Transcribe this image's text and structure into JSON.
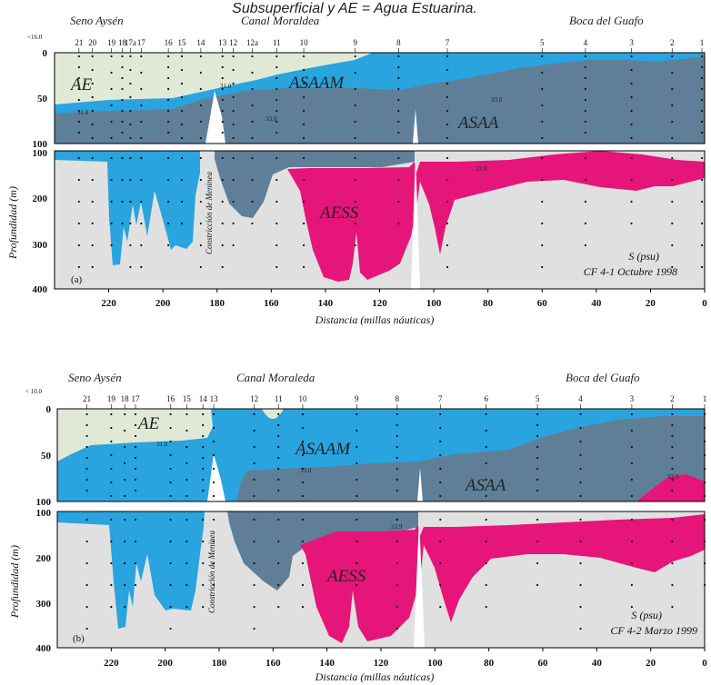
{
  "caption": "Subsuperficial y AE = Agua Estuarina.",
  "colors": {
    "AE": "#dfe9d6",
    "ASAAM": "#29a4df",
    "ASAA": "#5f7f98",
    "AESS": "#e6157a",
    "deep": "#e0e0e0",
    "sill": "#ffffff"
  },
  "chart_data": [
    {
      "type": "area",
      "panel_label": "(a)",
      "variable": "S (psu)",
      "cruise": "CF 4-1 Octubre 1998",
      "xlabel": "Distancia (millas náuticas)",
      "ylabel": "Profundidad (m)",
      "xlim": [
        240,
        0
      ],
      "upper_ylim": [
        0,
        100
      ],
      "lower_ylim": [
        100,
        400
      ],
      "x_ticks": [
        "220",
        "200",
        "180",
        "160",
        "140",
        "120",
        "100",
        "80",
        "60",
        "40",
        "20",
        "0"
      ],
      "upper_y_ticks": [
        "0",
        "50",
        "100"
      ],
      "lower_y_ticks": [
        "100",
        "200",
        "300",
        "400"
      ],
      "regions": [
        "Seno Aysén",
        "Canal Moraldea",
        "Boca del Guafo"
      ],
      "surface_note": "<16.0",
      "stations": [
        {
          "label": "21",
          "x": 231
        },
        {
          "label": "20",
          "x": 226
        },
        {
          "label": "19",
          "x": 219
        },
        {
          "label": "18",
          "x": 215
        },
        {
          "label": "17a",
          "x": 212
        },
        {
          "label": "17",
          "x": 208
        },
        {
          "label": "16",
          "x": 198
        },
        {
          "label": "15",
          "x": 193
        },
        {
          "label": "14",
          "x": 186
        },
        {
          "label": "13",
          "x": 178
        },
        {
          "label": "12",
          "x": 174
        },
        {
          "label": "12a",
          "x": 167
        },
        {
          "label": "11",
          "x": 158
        },
        {
          "label": "10",
          "x": 148
        },
        {
          "label": "9",
          "x": 129
        },
        {
          "label": "8",
          "x": 113
        },
        {
          "label": "7",
          "x": 95
        },
        {
          "label": "5",
          "x": 60
        },
        {
          "label": "4",
          "x": 44
        },
        {
          "label": "3",
          "x": 27
        },
        {
          "label": "2",
          "x": 12
        },
        {
          "label": "1",
          "x": 1
        }
      ],
      "water_masses": [
        "AE",
        "ASAAM",
        "ASAA",
        "AESS"
      ],
      "isohalines": [
        "31.0",
        "33.0",
        "33.9",
        "31.0",
        "33.0"
      ],
      "constriction_label": "Constricción de Meninea"
    },
    {
      "type": "area",
      "panel_label": "(b)",
      "variable": "S (psu)",
      "cruise": "CF 4-2 Marzo 1999",
      "xlabel": "Distancia (millas náuticas)",
      "ylabel": "Profundidad (m)",
      "xlim": [
        240,
        0
      ],
      "upper_ylim": [
        0,
        100
      ],
      "lower_ylim": [
        100,
        400
      ],
      "x_ticks": [
        "220",
        "200",
        "180",
        "160",
        "140",
        "120",
        "100",
        "80",
        "60",
        "40",
        "20",
        "0"
      ],
      "upper_y_ticks": [
        "0",
        "50",
        "100"
      ],
      "lower_y_ticks": [
        "100",
        "200",
        "300",
        "400"
      ],
      "regions": [
        "Seno Aysén",
        "Canal Moraleda",
        "Boca del Guafo"
      ],
      "surface_note": "< 10.0",
      "stations": [
        {
          "label": "21",
          "x": 229
        },
        {
          "label": "19",
          "x": 220
        },
        {
          "label": "18",
          "x": 215
        },
        {
          "label": "17",
          "x": 211
        },
        {
          "label": "16",
          "x": 198
        },
        {
          "label": "15",
          "x": 192
        },
        {
          "label": "14",
          "x": 186
        },
        {
          "label": "13",
          "x": 182
        },
        {
          "label": "12",
          "x": 167
        },
        {
          "label": "11",
          "x": 158
        },
        {
          "label": "10",
          "x": 149
        },
        {
          "label": "9",
          "x": 129
        },
        {
          "label": "8",
          "x": 114
        },
        {
          "label": "7",
          "x": 98
        },
        {
          "label": "6",
          "x": 81
        },
        {
          "label": "5",
          "x": 62
        },
        {
          "label": "4",
          "x": 46
        },
        {
          "label": "3",
          "x": 27
        },
        {
          "label": "2",
          "x": 12
        },
        {
          "label": "1",
          "x": 0
        }
      ],
      "water_masses": [
        "AE",
        "ASAAM",
        "ASAA",
        "AESS"
      ],
      "isohalines": [
        "31.0",
        "33.0",
        "33.9",
        "33.9"
      ],
      "constriction_label": "Constricción de Meninea"
    }
  ]
}
